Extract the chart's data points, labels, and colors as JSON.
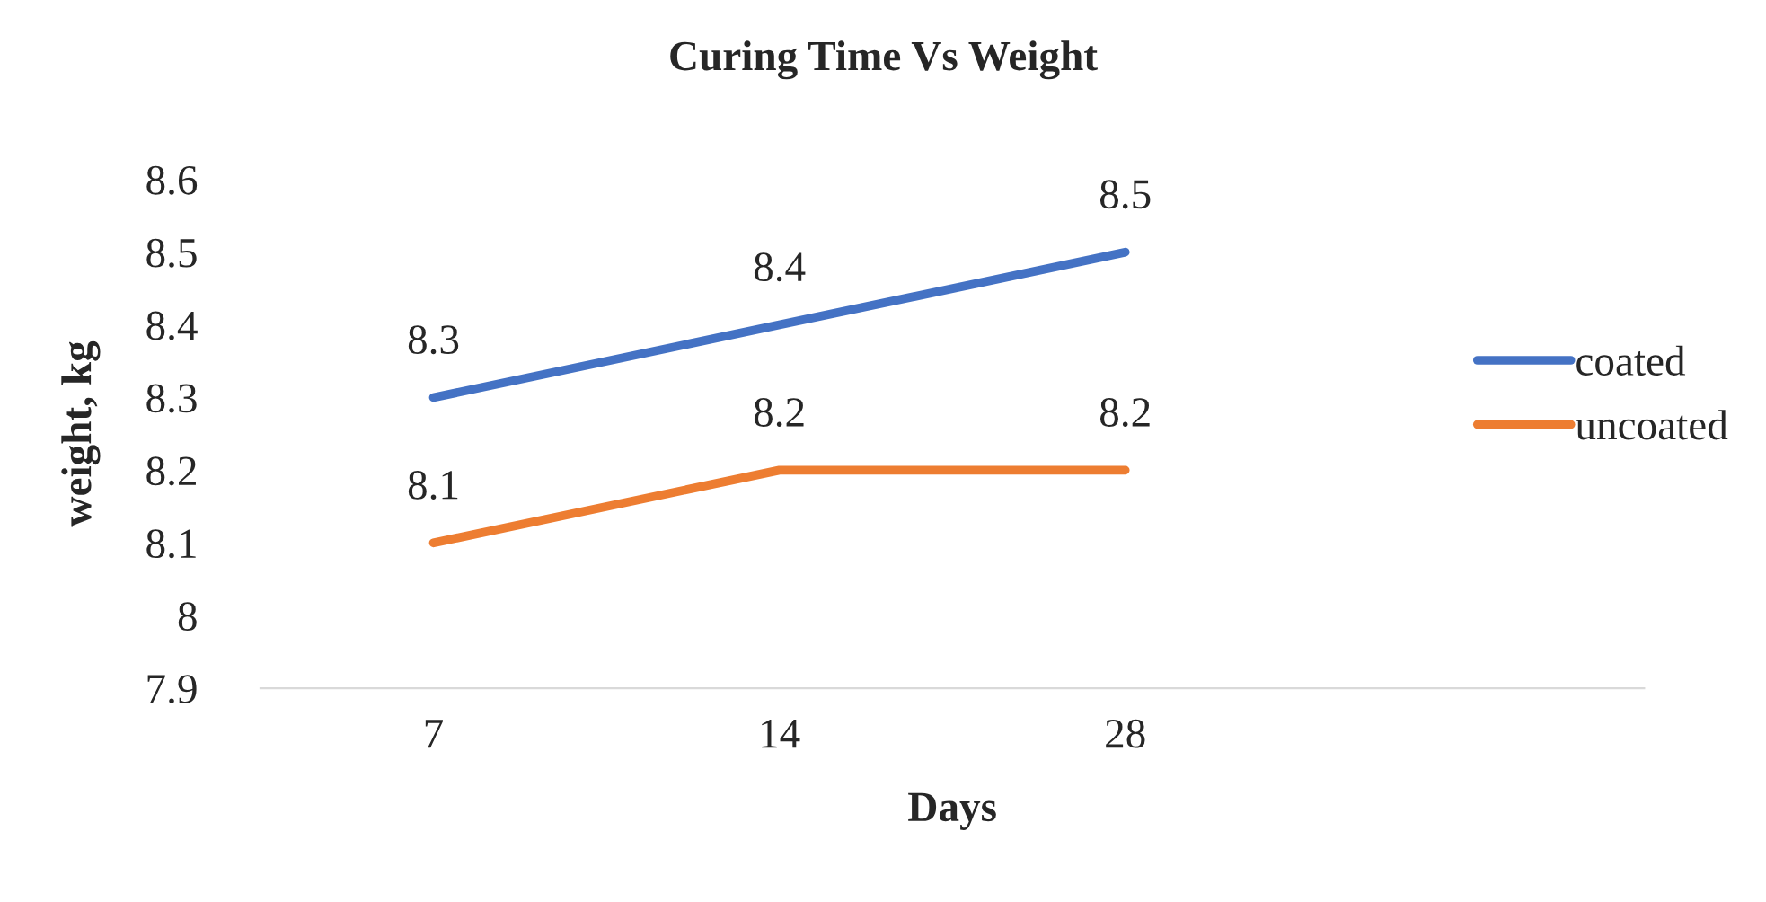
{
  "chart_data": {
    "type": "line",
    "title": "Curing Time Vs Weight",
    "xlabel": "Days",
    "ylabel": "weight, kg",
    "categories": [
      "7",
      "14",
      "28",
      null
    ],
    "series": [
      {
        "name": "coated",
        "color": "#4472c4",
        "values": [
          8.3,
          8.4,
          8.5,
          null
        ]
      },
      {
        "name": "uncoated",
        "color": "#ed7d31",
        "values": [
          8.1,
          8.2,
          8.2,
          null
        ]
      }
    ],
    "ylim": [
      7.9,
      8.6
    ],
    "yticks": [
      7.9,
      8.1,
      8.2,
      8.3,
      8.4,
      8.5,
      8.6,
      {
        "value": 8.0,
        "label": "8"
      }
    ],
    "data_labels": true,
    "legend": "right",
    "grid": false,
    "marker": "none",
    "line_style": "solid"
  }
}
